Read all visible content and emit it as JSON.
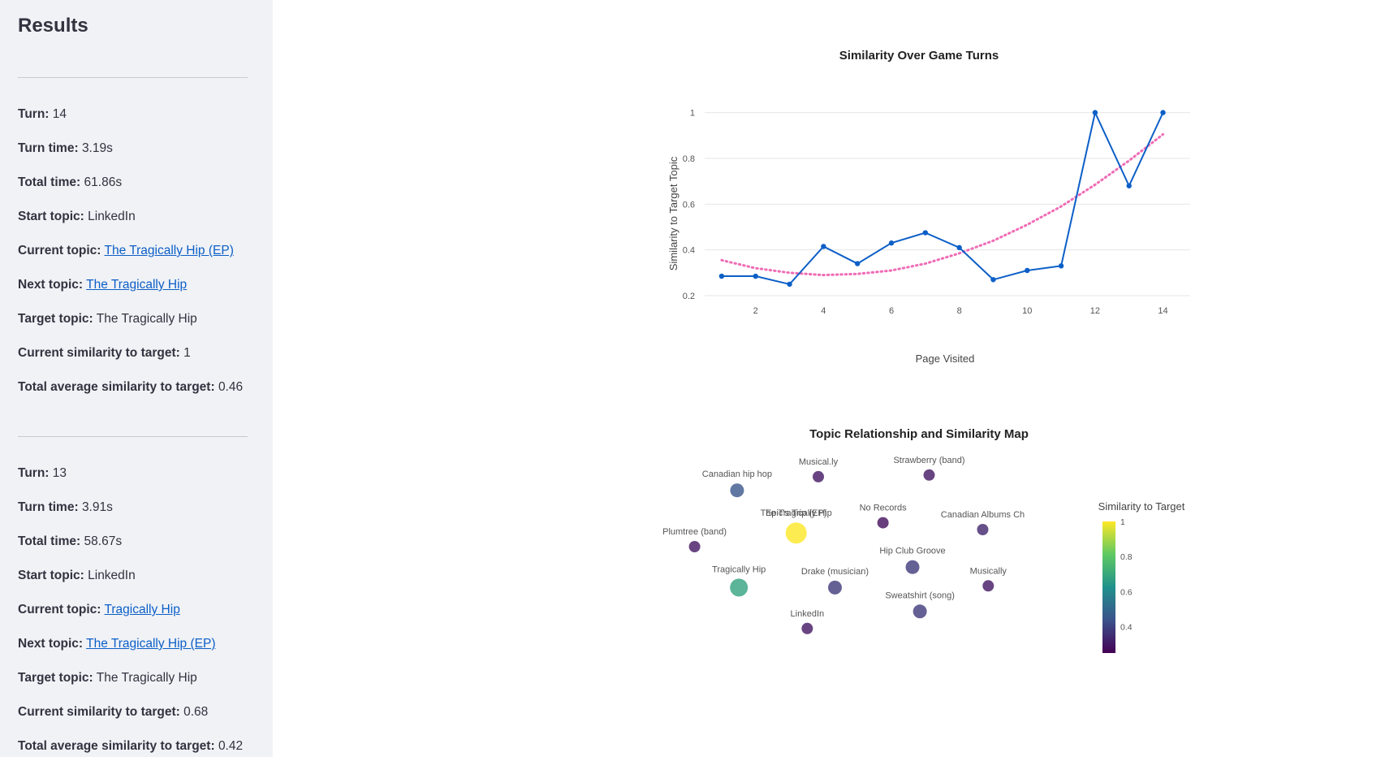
{
  "sidebar": {
    "title": "Results",
    "turns": [
      {
        "turn_label": "Turn:",
        "turn": "14",
        "turn_time_label": "Turn time:",
        "turn_time": "3.19s",
        "total_time_label": "Total time:",
        "total_time": "61.86s",
        "start_label": "Start topic:",
        "start": "LinkedIn",
        "current_label": "Current topic:",
        "current": "The Tragically Hip (EP)",
        "next_label": "Next topic:",
        "next": "The Tragically Hip",
        "target_label": "Target topic:",
        "target": "The Tragically Hip",
        "sim_label": "Current similarity to target:",
        "sim": "1",
        "avg_label": "Total average similarity to target:",
        "avg": "0.46"
      },
      {
        "turn_label": "Turn:",
        "turn": "13",
        "turn_time_label": "Turn time:",
        "turn_time": "3.91s",
        "total_time_label": "Total time:",
        "total_time": "58.67s",
        "start_label": "Start topic:",
        "start": "LinkedIn",
        "current_label": "Current topic:",
        "current": "Tragically Hip",
        "next_label": "Next topic:",
        "next": "The Tragically Hip (EP)",
        "target_label": "Target topic:",
        "target": "The Tragically Hip",
        "sim_label": "Current similarity to target:",
        "sim": "0.68",
        "avg_label": "Total average similarity to target:",
        "avg": "0.42"
      }
    ]
  },
  "chart_data": [
    {
      "type": "line",
      "title": "Similarity Over Game Turns",
      "xlabel": "Page Visited",
      "ylabel": "Similarity to Target Topic",
      "xlim": [
        0.5,
        14.8
      ],
      "ylim": [
        0.2,
        1.02
      ],
      "xticks": [
        "2",
        "4",
        "6",
        "8",
        "10",
        "12",
        "14"
      ],
      "yticks": [
        "0.2",
        "0.4",
        "0.6",
        "0.8",
        "1"
      ],
      "grid": true,
      "series": [
        {
          "x": [
            1,
            2,
            3,
            4,
            5,
            6,
            7,
            8,
            9,
            10,
            11,
            12,
            13,
            14
          ],
          "values": [
            0.285,
            0.285,
            0.25,
            0.415,
            0.34,
            0.43,
            0.475,
            0.41,
            0.27,
            0.31,
            0.33,
            1.0,
            0.68,
            1.0
          ],
          "color": "#0c5fc7"
        }
      ],
      "trend": {
        "style": "dotted",
        "color": "#f06cb6",
        "x": [
          1,
          2,
          3,
          4,
          5,
          6,
          7,
          8,
          9,
          10,
          11,
          12,
          13,
          14
        ],
        "values": [
          0.355,
          0.32,
          0.3,
          0.29,
          0.295,
          0.31,
          0.34,
          0.385,
          0.44,
          0.51,
          0.59,
          0.685,
          0.79,
          0.905
        ]
      }
    },
    {
      "type": "scatter",
      "title": "Topic Relationship and Similarity Map",
      "colorbar_title": "Similarity to Target",
      "colorbar_ticks": [
        "1",
        "0.8",
        "0.6",
        "0.4"
      ],
      "colorbar_range": [
        0.25,
        1.0
      ],
      "points": [
        {
          "label": "Canadian hip hop",
          "x": 0.18,
          "y": 0.83,
          "sim": 0.45
        },
        {
          "label": "Musical.ly",
          "x": 0.4,
          "y": 0.91,
          "sim": 0.3
        },
        {
          "label": "Strawberry (band)",
          "x": 0.7,
          "y": 0.92,
          "sim": 0.3
        },
        {
          "label": "No Records",
          "x": 0.575,
          "y": 0.64,
          "sim": 0.28
        },
        {
          "label": "Canadian Albums Ch",
          "x": 0.845,
          "y": 0.6,
          "sim": 0.33
        },
        {
          "label": "The Tragically Hip",
          "x": 0.34,
          "y": 0.58,
          "sim": 1.0
        },
        {
          "label": "Epic's Trip (EP)",
          "x": 0.34,
          "y": 0.58,
          "sim": 1.0
        },
        {
          "label": "Plumtree (band)",
          "x": 0.065,
          "y": 0.5,
          "sim": 0.3
        },
        {
          "label": "Hip Club Groove",
          "x": 0.655,
          "y": 0.38,
          "sim": 0.38
        },
        {
          "label": "Musically",
          "x": 0.86,
          "y": 0.27,
          "sim": 0.3
        },
        {
          "label": "Tragically Hip",
          "x": 0.185,
          "y": 0.26,
          "sim": 0.68
        },
        {
          "label": "Drake (musician)",
          "x": 0.445,
          "y": 0.26,
          "sim": 0.38
        },
        {
          "label": "Sweatshirt (song)",
          "x": 0.675,
          "y": 0.12,
          "sim": 0.38
        },
        {
          "label": "LinkedIn",
          "x": 0.37,
          "y": 0.02,
          "sim": 0.3
        }
      ]
    }
  ]
}
